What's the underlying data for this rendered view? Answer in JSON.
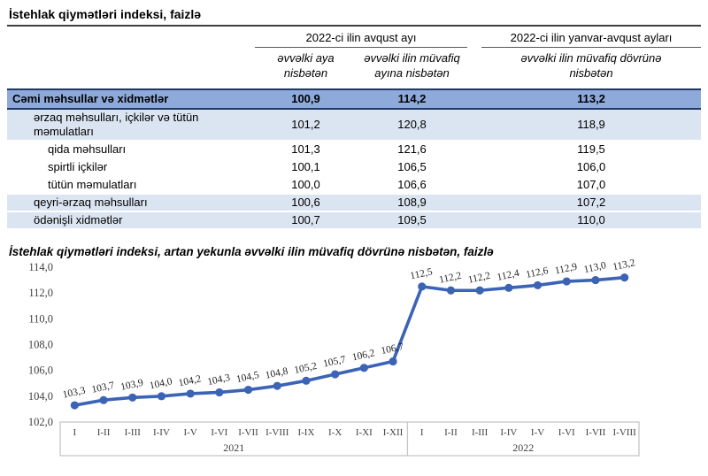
{
  "table": {
    "title": "İstehlak qiymətləri indeksi, faizlə",
    "col_groups": [
      "2022-ci ilin avqust ayı",
      "2022-ci ilin yanvar-avqust ayları"
    ],
    "sub_headers": [
      "əvvəlki aya nisbətən",
      "əvvəlki ilin müvafiq ayına nisbətən",
      "əvvəlki ilin müvafiq dövrünə nisbətən"
    ],
    "rows": [
      {
        "label": "Cəmi məhsullar və xidmətlər",
        "values": [
          "100,9",
          "114,2",
          "113,2"
        ],
        "style": "total",
        "indent": 0
      },
      {
        "label": "ərzaq məhsulları, içkilər və tütün məmulatları",
        "values": [
          "101,2",
          "120,8",
          "118,9"
        ],
        "style": "group",
        "indent": 1
      },
      {
        "label": "qida məhsulları",
        "values": [
          "101,3",
          "121,6",
          "119,5"
        ],
        "style": "plain",
        "indent": 2
      },
      {
        "label": "spirtli içkilər",
        "values": [
          "100,1",
          "106,5",
          "106,0"
        ],
        "style": "plain",
        "indent": 2
      },
      {
        "label": "tütün məmulatları",
        "values": [
          "100,0",
          "106,6",
          "107,0"
        ],
        "style": "plain",
        "indent": 2
      },
      {
        "label": "qeyri-ərzaq məhsulları",
        "values": [
          "100,6",
          "108,9",
          "107,2"
        ],
        "style": "group",
        "indent": 1
      },
      {
        "label": "ödənişli xidmətlər",
        "values": [
          "100,7",
          "109,5",
          "110,0"
        ],
        "style": "group",
        "indent": 1
      }
    ]
  },
  "chart_data": {
    "type": "line",
    "title": "İstehlak qiymətləri indeksi, artan yekunla əvvəlki ilin müvafiq dövrünə nisbətən, faizlə",
    "categories": [
      "I",
      "I-II",
      "I-III",
      "I-IV",
      "I-V",
      "I-VI",
      "I-VII",
      "I-VIII",
      "I-IX",
      "I-X",
      "I-XI",
      "I-XII",
      "I",
      "I-II",
      "I-III",
      "I-IV",
      "I-V",
      "I-VI",
      "I-VII",
      "I-VIII"
    ],
    "year_groups": [
      {
        "label": "2021",
        "count": 12
      },
      {
        "label": "2022",
        "count": 8
      }
    ],
    "values": [
      103.3,
      103.7,
      103.9,
      104.0,
      104.2,
      104.3,
      104.5,
      104.8,
      105.2,
      105.7,
      106.2,
      106.7,
      112.5,
      112.2,
      112.2,
      112.4,
      112.6,
      112.9,
      113.0,
      113.2
    ],
    "point_labels": [
      "103,3",
      "103,7",
      "103,9",
      "104,0",
      "104,2",
      "104,3",
      "104,5",
      "104,8",
      "105,2",
      "105,7",
      "106,2",
      "106,7",
      "112,5",
      "112,2",
      "112,2",
      "112,4",
      "112,6",
      "112,9",
      "113,0",
      "113,2"
    ],
    "ylim": [
      102,
      114
    ],
    "ytick_step": 2,
    "ytick_labels": [
      "102,0",
      "104,0",
      "106,0",
      "108,0",
      "110,0",
      "112,0",
      "114,0"
    ],
    "line_color": "#3B63B6",
    "label_color": "#1F1F1F",
    "tick_color": "#404040",
    "axis_box_color": "#C6C6C6",
    "grid": false,
    "legend": false
  }
}
